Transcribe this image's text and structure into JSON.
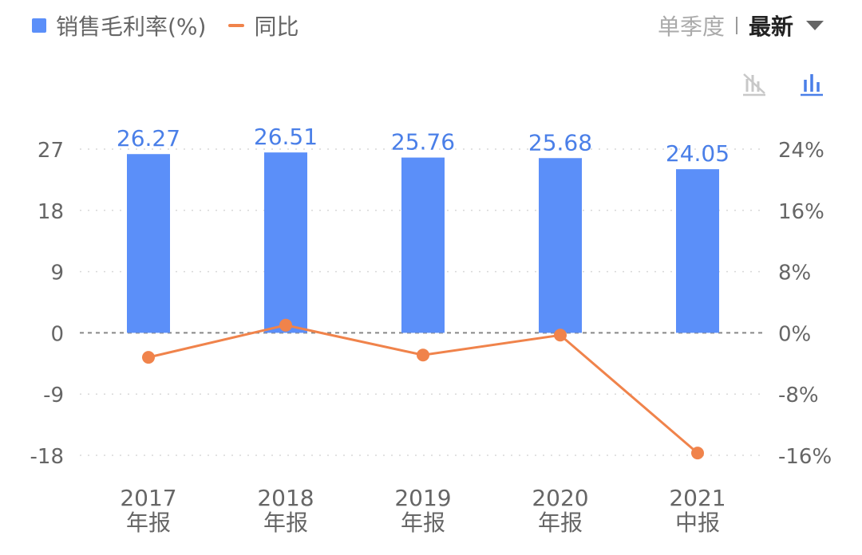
{
  "legend": {
    "bar_label": "销售毛利率(%)",
    "line_label": "同比"
  },
  "controls": {
    "period_label": "单季度",
    "active_label": "最新"
  },
  "icons": {
    "line_toggle": "line-chart-off-icon",
    "bar_toggle": "bar-chart-icon"
  },
  "colors": {
    "bar": "#5b8ff9",
    "line": "#f0834b",
    "bar_label": "#4a7fe8",
    "axis_text": "#666666",
    "grid": "#d9d9d9"
  },
  "chart_data": {
    "type": "bar+line",
    "categories": [
      {
        "year": "2017",
        "period": "年报"
      },
      {
        "year": "2018",
        "period": "年报"
      },
      {
        "year": "2019",
        "period": "年报"
      },
      {
        "year": "2020",
        "period": "年报"
      },
      {
        "year": "2021",
        "period": "中报"
      }
    ],
    "series": [
      {
        "type": "bar",
        "axis": "left",
        "values": [
          26.27,
          26.51,
          25.76,
          25.68,
          24.05
        ],
        "labels": [
          "26.27",
          "26.51",
          "25.76",
          "25.68",
          "24.05"
        ]
      },
      {
        "type": "line",
        "axis": "right",
        "values": [
          -3.2,
          1.0,
          -2.9,
          -0.3,
          -15.7
        ]
      }
    ],
    "y_left": {
      "ticks": [
        27,
        18,
        9,
        0,
        -9,
        -18
      ],
      "tick_labels": [
        "27",
        "18",
        "9",
        "0",
        "-9",
        "-18"
      ],
      "range": [
        -18,
        27
      ]
    },
    "y_right": {
      "ticks": [
        24,
        16,
        8,
        0,
        -8,
        -16
      ],
      "tick_labels": [
        "24%",
        "16%",
        "8%",
        "0%",
        "-8%",
        "-16%"
      ],
      "range": [
        -16,
        24
      ]
    },
    "grid": true
  }
}
